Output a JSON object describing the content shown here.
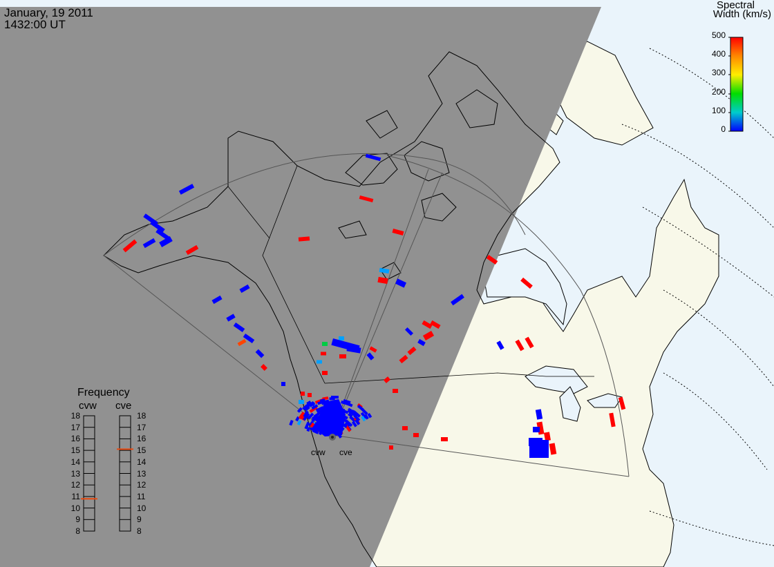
{
  "header": {
    "date": "January, 19 2011",
    "time": "1432:00 UT"
  },
  "legend": {
    "title_line1": "Spectral",
    "title_line2": "Width (km/s)",
    "ticks": [
      "500",
      "400",
      "300",
      "200",
      "100",
      "0"
    ],
    "gradient_stops": [
      "#ff0000",
      "#ff8800",
      "#ffee00",
      "#00dd00",
      "#00cccc",
      "#0000ff"
    ]
  },
  "frequency_panel": {
    "title": "Frequency",
    "radars": [
      {
        "name": "cvw",
        "freq_mhz": 10.8
      },
      {
        "name": "cve",
        "freq_mhz": 15.1
      }
    ],
    "ticks": [
      "18",
      "17",
      "16",
      "15",
      "14",
      "13",
      "12",
      "11",
      "10",
      "9",
      "8"
    ]
  },
  "sites": [
    {
      "name": "cvw"
    },
    {
      "name": "cve"
    }
  ],
  "colors": {
    "night": "#919191",
    "day_land": "#f8f8e9",
    "ocean": "#eaf4fb",
    "coast": "#000000",
    "fov": "#555555",
    "high_width": "#ff0000",
    "low_width": "#0000ff",
    "mid_width": "#00a0ff"
  }
}
